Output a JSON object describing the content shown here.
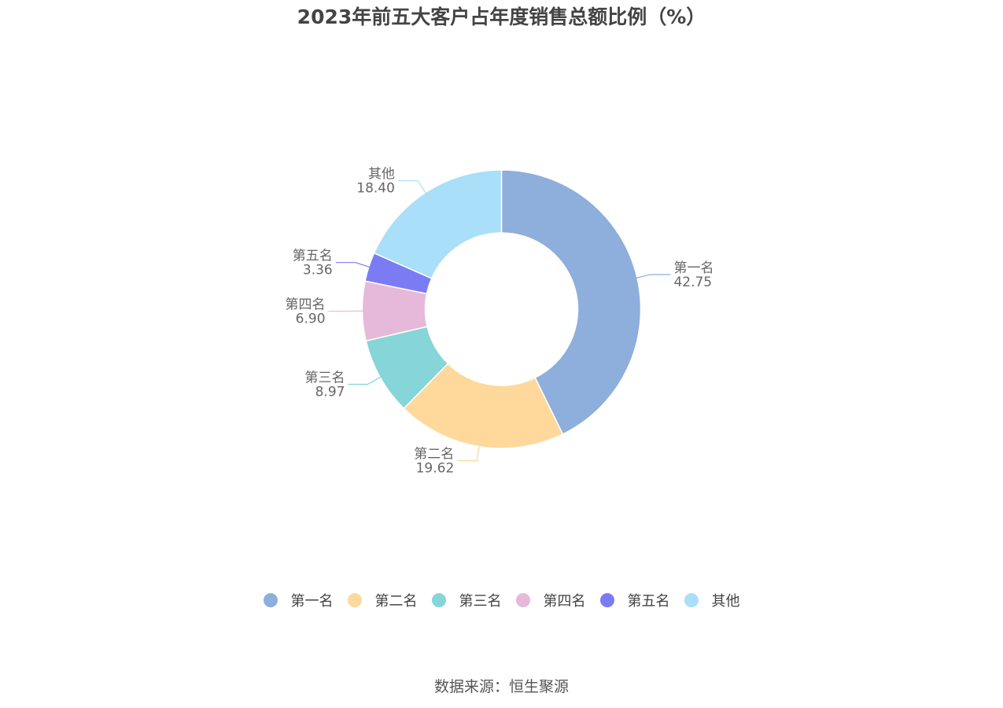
{
  "chart_data": {
    "type": "pie",
    "title": "2023年前五大客户占年度销售总额比例（%）",
    "categories": [
      "第一名",
      "第二名",
      "第三名",
      "第四名",
      "第五名",
      "其他"
    ],
    "values": [
      42.75,
      19.62,
      8.97,
      6.9,
      3.36,
      18.4
    ],
    "value_labels": [
      "42.75",
      "19.62",
      "8.97",
      "6.90",
      "3.36",
      "18.40"
    ],
    "colors": [
      "#8eaedb",
      "#fed99b",
      "#86d5d8",
      "#e6b8d9",
      "#7b7cf4",
      "#a9dff8"
    ],
    "donut": true,
    "legend_position": "bottom",
    "source": "数据来源：恒生聚源"
  }
}
